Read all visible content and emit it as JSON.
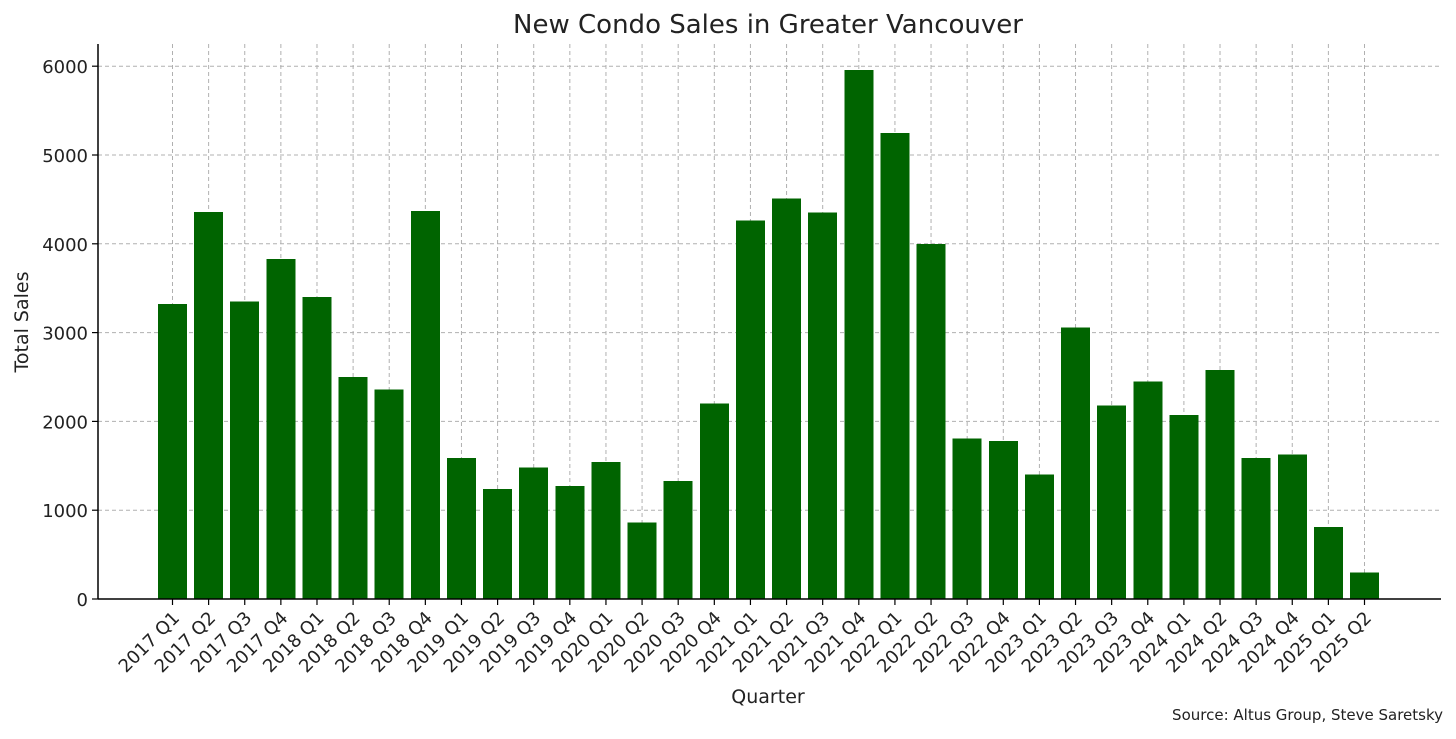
{
  "chart_data": {
    "type": "bar",
    "title": "New Condo Sales in Greater Vancouver",
    "xlabel": "Quarter",
    "ylabel": "Total Sales",
    "source": "Source: Altus Group, Steve Saretsky",
    "ylim": [
      0,
      6250
    ],
    "yticks": [
      0,
      1000,
      2000,
      3000,
      4000,
      5000,
      6000
    ],
    "grid": true,
    "bar_color": "#006400",
    "categories": [
      "2017 Q1",
      "2017 Q2",
      "2017 Q3",
      "2017 Q4",
      "2018 Q1",
      "2018 Q2",
      "2018 Q3",
      "2018 Q4",
      "2019 Q1",
      "2019 Q2",
      "2019 Q3",
      "2019 Q4",
      "2020 Q1",
      "2020 Q2",
      "2020 Q3",
      "2020 Q4",
      "2021 Q1",
      "2021 Q2",
      "2021 Q3",
      "2021 Q4",
      "2022 Q1",
      "2022 Q2",
      "2022 Q3",
      "2022 Q4",
      "2023 Q1",
      "2023 Q2",
      "2023 Q3",
      "2023 Q4",
      "2024 Q1",
      "2024 Q2",
      "2024 Q3",
      "2024 Q4",
      "2025 Q1",
      "2025 Q2"
    ],
    "values": [
      3320,
      4360,
      3350,
      3830,
      3400,
      2500,
      2360,
      4370,
      1590,
      1240,
      1480,
      1270,
      1540,
      860,
      1330,
      2200,
      4260,
      4510,
      4350,
      5960,
      5250,
      4000,
      1810,
      1780,
      1400,
      3060,
      2180,
      2450,
      2070,
      2580,
      1590,
      1630,
      810,
      300
    ]
  }
}
